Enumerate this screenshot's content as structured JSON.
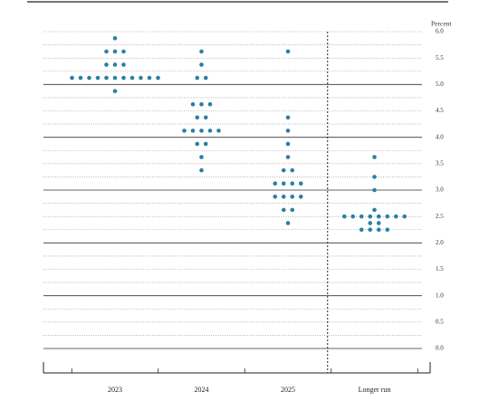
{
  "chart_data": {
    "type": "dot",
    "y_axis_label": "Percent",
    "categories": [
      "2023",
      "2024",
      "2025",
      "Longer run"
    ],
    "values": [
      [
        5.875,
        5.625,
        5.625,
        5.625,
        5.375,
        5.375,
        5.375,
        5.125,
        5.125,
        5.125,
        5.125,
        5.125,
        5.125,
        5.125,
        5.125,
        5.125,
        5.125,
        5.125,
        4.875
      ],
      [
        5.625,
        5.375,
        5.125,
        5.125,
        4.625,
        4.625,
        4.625,
        4.375,
        4.375,
        4.125,
        4.125,
        4.125,
        4.125,
        4.125,
        3.875,
        3.875,
        3.625,
        3.375
      ],
      [
        5.625,
        4.375,
        4.125,
        3.875,
        3.625,
        3.375,
        3.375,
        3.125,
        3.125,
        3.125,
        3.125,
        2.875,
        2.875,
        2.875,
        2.875,
        2.625,
        2.625,
        2.375
      ],
      [
        3.625,
        3.25,
        3.0,
        2.625,
        2.5,
        2.5,
        2.5,
        2.5,
        2.5,
        2.5,
        2.5,
        2.5,
        2.375,
        2.375,
        2.25,
        2.25,
        2.25,
        2.25
      ]
    ],
    "color": "#2b7fa3",
    "ylim": [
      0,
      6
    ],
    "yticks": [
      {
        "value": 0,
        "label": "0.0"
      },
      {
        "value": 0.5,
        "label": "0.5"
      },
      {
        "value": 1,
        "label": "1.0"
      },
      {
        "value": 1.5,
        "label": "1.5"
      },
      {
        "value": 2,
        "label": "2.0"
      },
      {
        "value": 2.5,
        "label": "2.5"
      },
      {
        "value": 3,
        "label": "3.0"
      },
      {
        "value": 3.5,
        "label": "3.5"
      },
      {
        "value": 4,
        "label": "4.0"
      },
      {
        "value": 4.5,
        "label": "4.5"
      },
      {
        "value": 5,
        "label": "5.0"
      },
      {
        "value": 5.5,
        "label": "5.5"
      },
      {
        "value": 6,
        "label": "6.0"
      }
    ],
    "minor_yticks": [
      0.25,
      0.75,
      1.25,
      1.75,
      2.25,
      2.75,
      3.25,
      3.75,
      4.25,
      4.75,
      5.25,
      5.75
    ],
    "grid": true
  }
}
